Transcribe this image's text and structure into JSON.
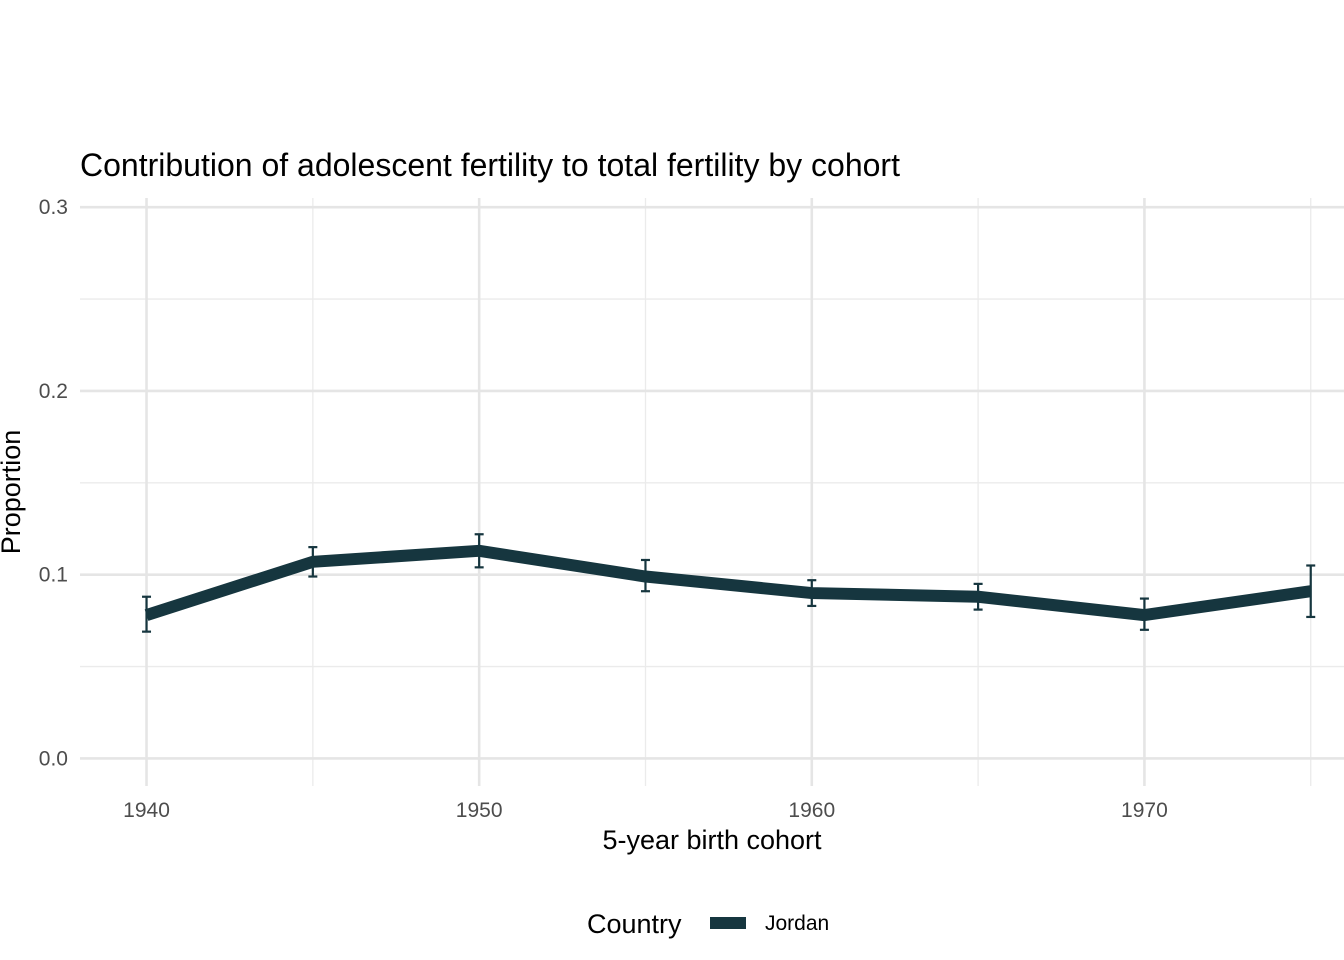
{
  "chart_data": {
    "type": "line",
    "title": "Contribution of adolescent fertility to total fertility by cohort",
    "xlabel": "5-year birth cohort",
    "ylabel": "Proportion",
    "x": [
      1940,
      1945,
      1950,
      1955,
      1960,
      1965,
      1970,
      1975
    ],
    "xlim": [
      1938,
      1976
    ],
    "ylim": [
      -0.015,
      0.305
    ],
    "x_ticks": [
      1940,
      1950,
      1960,
      1970
    ],
    "x_tick_labels": [
      "1940",
      "1950",
      "1960",
      "1970"
    ],
    "y_ticks": [
      0.0,
      0.1,
      0.2,
      0.3
    ],
    "y_tick_labels": [
      "0.0",
      "0.1",
      "0.2",
      "0.3"
    ],
    "grid": true,
    "legend": {
      "title": "Country",
      "position": "bottom"
    },
    "series": [
      {
        "name": "Jordan",
        "color": "#16363f",
        "values": [
          0.078,
          0.107,
          0.113,
          0.099,
          0.09,
          0.088,
          0.078,
          0.091
        ],
        "lower": [
          0.069,
          0.099,
          0.104,
          0.091,
          0.083,
          0.081,
          0.07,
          0.077
        ],
        "upper": [
          0.088,
          0.115,
          0.122,
          0.108,
          0.097,
          0.095,
          0.087,
          0.105
        ]
      }
    ]
  }
}
